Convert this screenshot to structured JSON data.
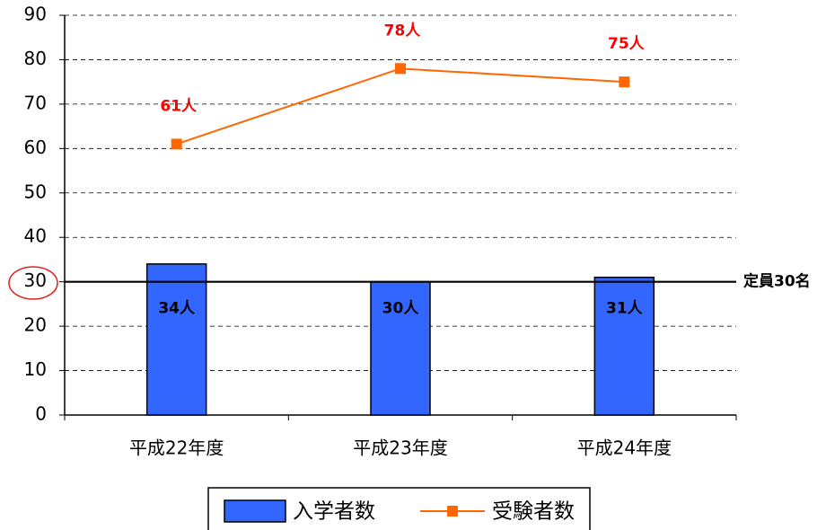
{
  "chart_data": {
    "type": "combo",
    "categories": [
      "平成22年度",
      "平成23年度",
      "平成24年度"
    ],
    "series": [
      {
        "name": "入学者数",
        "type": "bar",
        "color": "#3366ff",
        "values": [
          34,
          30,
          31
        ],
        "value_labels": [
          "34人",
          "30人",
          "31人"
        ]
      },
      {
        "name": "受験者数",
        "type": "line",
        "color": "#ff6600",
        "values": [
          61,
          78,
          75
        ],
        "value_labels": [
          "61人",
          "78人",
          "75人"
        ]
      }
    ],
    "reference_line": {
      "value": 30,
      "label": "定員30名"
    },
    "ylim": [
      0,
      90
    ],
    "yticks": [
      0,
      10,
      20,
      30,
      40,
      50,
      60,
      70,
      80,
      90
    ],
    "grid": true
  }
}
